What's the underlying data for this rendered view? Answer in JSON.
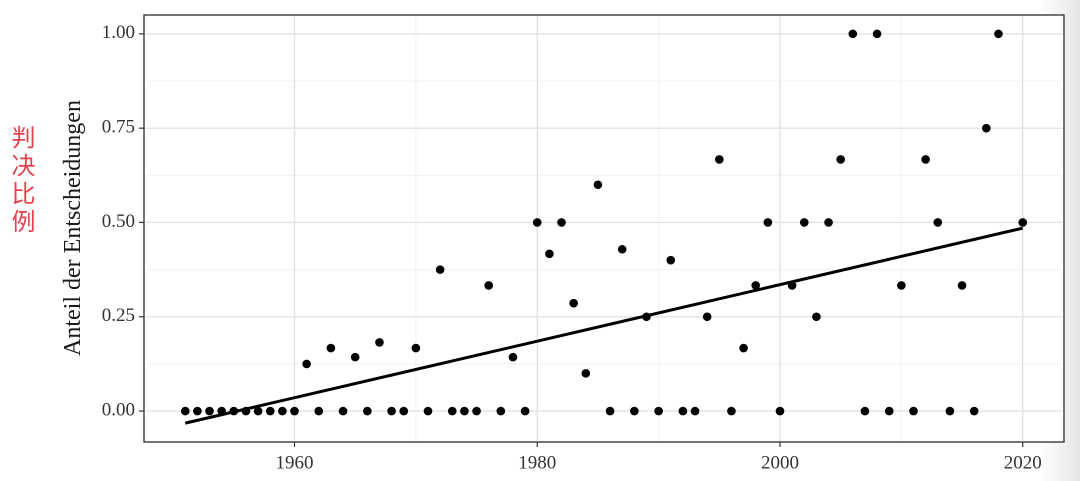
{
  "chart_data": {
    "type": "scatter",
    "ylabel": "Anteil der Entscheidungen",
    "annotation": "判决比例",
    "xlim": [
      1947.6,
      2023.4
    ],
    "ylim": [
      -0.082,
      1.05
    ],
    "xticks": [
      1960,
      1980,
      2000,
      2020
    ],
    "yticks": [
      {
        "value": 0,
        "label": "0.00"
      },
      {
        "value": 0.25,
        "label": "0.25"
      },
      {
        "value": 0.5,
        "label": "0.50"
      },
      {
        "value": 0.75,
        "label": "0.75"
      },
      {
        "value": 1,
        "label": "1.00"
      }
    ],
    "grid": true,
    "series": [
      {
        "color": "#000000",
        "x": [
          1951,
          1952,
          1953,
          1954,
          1955,
          1956,
          1957,
          1958,
          1959,
          1960,
          1961,
          1962,
          1963,
          1964,
          1965,
          1966,
          1967,
          1968,
          1969,
          1970,
          1971,
          1972,
          1973,
          1974,
          1975,
          1976,
          1977,
          1978,
          1979,
          1980,
          1981,
          1982,
          1983,
          1984,
          1985,
          1986,
          1987,
          1988,
          1989,
          1990,
          1991,
          1992,
          1993,
          1994,
          1995,
          1996,
          1997,
          1998,
          1999,
          2000,
          2001,
          2002,
          2003,
          2004,
          2005,
          2006,
          2007,
          2008,
          2009,
          2010,
          2011,
          2012,
          2013,
          2014,
          2015,
          2016,
          2017,
          2018,
          2020
        ],
        "values": [
          0,
          0,
          0,
          0,
          0,
          0,
          0,
          0,
          0,
          0,
          0.125,
          0,
          0.167,
          0,
          0.143,
          0,
          0.182,
          0,
          0,
          0.167,
          0,
          0.375,
          0,
          0,
          0,
          0.333,
          0,
          0.143,
          0,
          0.5,
          0.417,
          0.5,
          0.286,
          0.1,
          0.6,
          0,
          0.429,
          0,
          0.25,
          0,
          0.4,
          0,
          0,
          0.25,
          0.667,
          0,
          0.167,
          0.333,
          0.5,
          0,
          0.333,
          0.5,
          0.25,
          0.5,
          0.667,
          1,
          0,
          1,
          0,
          0.333,
          0,
          0.667,
          0.5,
          0,
          0.333,
          0,
          0.75,
          1,
          0.5
        ]
      }
    ],
    "trend": {
      "color": "#000000",
      "x": [
        1951,
        2020
      ],
      "values": [
        -0.032,
        0.485
      ]
    }
  }
}
